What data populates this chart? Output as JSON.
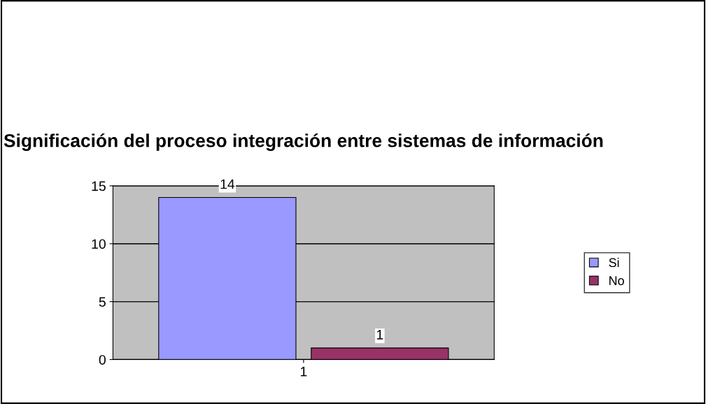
{
  "chart_data": {
    "type": "bar",
    "title": "Significación del proceso integración entre sistemas de información",
    "categories": [
      "1"
    ],
    "series": [
      {
        "name": "Si",
        "color": "#9999ff",
        "values": [
          14
        ]
      },
      {
        "name": "No",
        "color": "#993366",
        "values": [
          1
        ]
      }
    ],
    "ylim": [
      0,
      15
    ],
    "yticks": [
      0,
      5,
      10,
      15
    ],
    "grid": "y",
    "legend": "right",
    "data_labels": true
  }
}
